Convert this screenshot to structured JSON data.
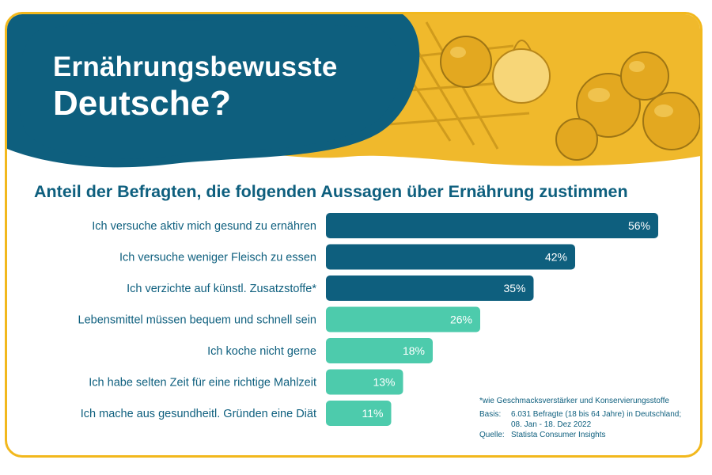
{
  "title": {
    "line1": "Ernährungsbewusste",
    "line2": "Deutsche?"
  },
  "subtitle": "Anteil der Befragten, die folgenden Aussagen über Ernährung zustimmen",
  "colors": {
    "dark": "#0e5f7e",
    "light": "#4dcbac",
    "gold": "#f2b81d",
    "label": "#0e5f7e"
  },
  "chart_data": {
    "type": "bar",
    "orientation": "horizontal",
    "categories": [
      "Ich versuche aktiv mich gesund zu ernähren",
      "Ich versuche weniger Fleisch zu essen",
      "Ich verzichte auf künstl. Zusatzstoffe*",
      "Lebensmittel müssen bequem und schnell sein",
      "Ich koche nicht gerne",
      "Ich habe selten Zeit für eine richtige Mahlzeit",
      "Ich mache aus gesundheitl. Gründen eine Diät"
    ],
    "values": [
      56,
      42,
      35,
      26,
      18,
      13,
      11
    ],
    "value_labels": [
      "56%",
      "42%",
      "35%",
      "26%",
      "18%",
      "13%",
      "11%"
    ],
    "unit": "%",
    "bar_colors": [
      "dark",
      "dark",
      "dark",
      "light",
      "light",
      "light",
      "light"
    ],
    "xlim": [
      0,
      60
    ],
    "grid": false,
    "legend": "none"
  },
  "notes": {
    "footnote": "*wie Geschmacksverstärker und Konservierungsstoffe",
    "basis_label": "Basis:",
    "basis_text": "6.031 Befragte (18 bis 64 Jahre) in Deutschland; 08. Jan - 18. Dez 2022",
    "source_label": "Quelle:",
    "source_text": "Statista Consumer Insights"
  }
}
